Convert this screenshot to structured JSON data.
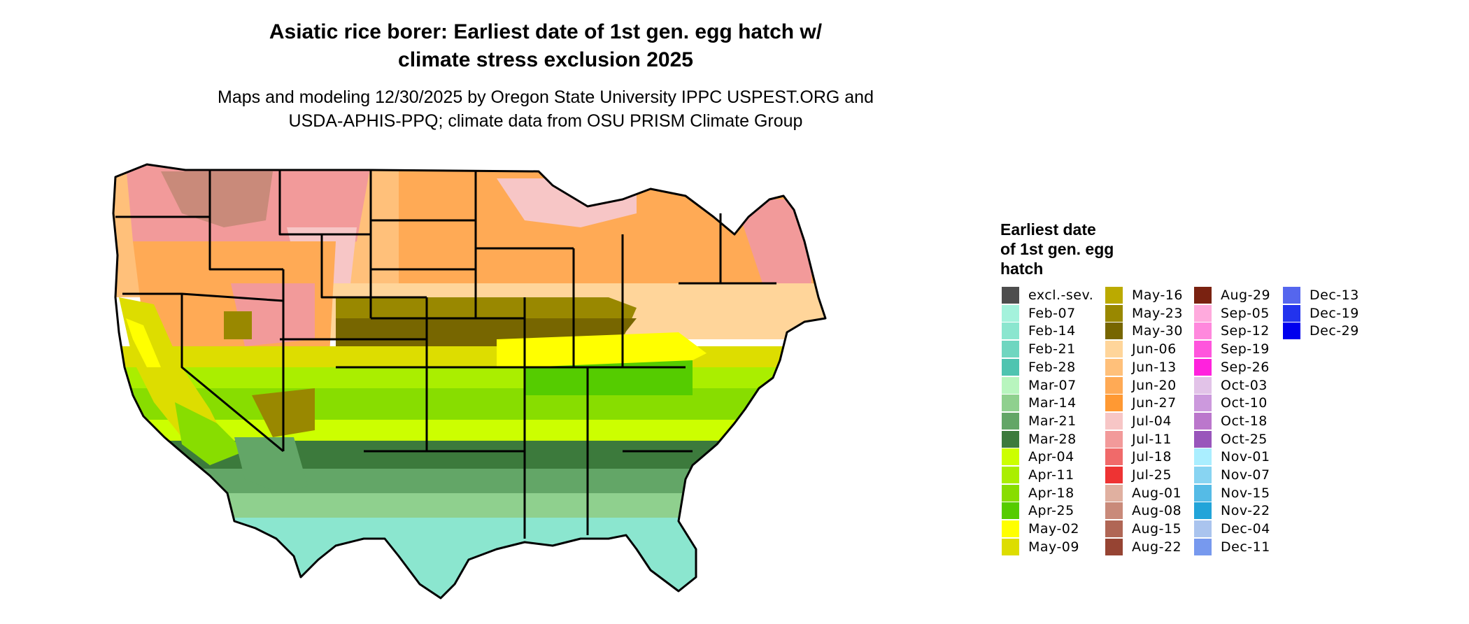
{
  "title": {
    "line1": "Asiatic rice borer: Earliest date of 1st gen. egg hatch w/",
    "line2": "climate stress exclusion 2025"
  },
  "subtitle": {
    "line1": "Maps and modeling 12/30/2025 by Oregon State University IPPC USPEST.ORG and",
    "line2": "USDA-APHIS-PPQ; climate data from OSU PRISM Climate Group"
  },
  "legend": {
    "title_lines": [
      "Earliest date",
      "of 1st gen. egg",
      "hatch"
    ],
    "columns": [
      [
        {
          "label": "excl.-sev.",
          "color": "#4d4d4d"
        },
        {
          "label": "Feb-07",
          "color": "#a4f2dc"
        },
        {
          "label": "Feb-14",
          "color": "#8be6cf"
        },
        {
          "label": "Feb-21",
          "color": "#6fd6c0"
        },
        {
          "label": "Feb-28",
          "color": "#4fc4b0"
        },
        {
          "label": "Mar-07",
          "color": "#b8f5be"
        },
        {
          "label": "Mar-14",
          "color": "#8fd08e"
        },
        {
          "label": "Mar-21",
          "color": "#63a667"
        },
        {
          "label": "Mar-28",
          "color": "#3c7a3c"
        },
        {
          "label": "Apr-04",
          "color": "#ccff00"
        },
        {
          "label": "Apr-11",
          "color": "#aaee00"
        },
        {
          "label": "Apr-18",
          "color": "#88dd00"
        },
        {
          "label": "Apr-25",
          "color": "#55cc00"
        },
        {
          "label": "May-02",
          "color": "#ffff00"
        },
        {
          "label": "May-09",
          "color": "#dddd00"
        }
      ],
      [
        {
          "label": "May-16",
          "color": "#bbaa00"
        },
        {
          "label": "May-23",
          "color": "#998800"
        },
        {
          "label": "May-30",
          "color": "#776600"
        },
        {
          "label": "Jun-06",
          "color": "#ffd59a"
        },
        {
          "label": "Jun-13",
          "color": "#ffc07a"
        },
        {
          "label": "Jun-20",
          "color": "#ffaa55"
        },
        {
          "label": "Jun-27",
          "color": "#ff9933"
        },
        {
          "label": "Jul-04",
          "color": "#f7c6c6"
        },
        {
          "label": "Jul-11",
          "color": "#f29a9a"
        },
        {
          "label": "Jul-18",
          "color": "#f06a6a"
        },
        {
          "label": "Jul-25",
          "color": "#ee3333"
        },
        {
          "label": "Aug-01",
          "color": "#e0b0a0"
        },
        {
          "label": "Aug-08",
          "color": "#c98a7a"
        },
        {
          "label": "Aug-15",
          "color": "#b06655"
        },
        {
          "label": "Aug-22",
          "color": "#964433"
        }
      ],
      [
        {
          "label": "Aug-29",
          "color": "#7a2211"
        },
        {
          "label": "Sep-05",
          "color": "#ffaadd"
        },
        {
          "label": "Sep-12",
          "color": "#ff88dd"
        },
        {
          "label": "Sep-19",
          "color": "#ff55dd"
        },
        {
          "label": "Sep-26",
          "color": "#ff22dd"
        },
        {
          "label": "Oct-03",
          "color": "#e2c3e8"
        },
        {
          "label": "Oct-10",
          "color": "#cc99dd"
        },
        {
          "label": "Oct-18",
          "color": "#bb77cc"
        },
        {
          "label": "Oct-25",
          "color": "#9955bb"
        },
        {
          "label": "Nov-01",
          "color": "#aaeeff"
        },
        {
          "label": "Nov-07",
          "color": "#88d4f2"
        },
        {
          "label": "Nov-15",
          "color": "#55bbe6"
        },
        {
          "label": "Nov-22",
          "color": "#22a4d9"
        },
        {
          "label": "Dec-04",
          "color": "#aac4ee"
        },
        {
          "label": "Dec-11",
          "color": "#7799ee"
        }
      ],
      [
        {
          "label": "Dec-13",
          "color": "#5566ee"
        },
        {
          "label": "Dec-19",
          "color": "#2233ee"
        },
        {
          "label": "Dec-29",
          "color": "#0000ee"
        }
      ]
    ]
  }
}
